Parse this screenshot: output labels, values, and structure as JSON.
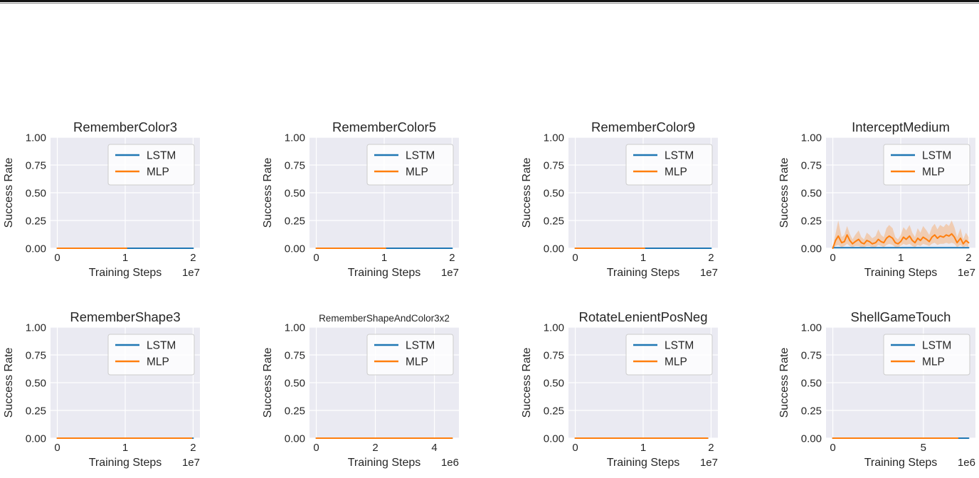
{
  "figure": {
    "shared": {
      "ylabel": "Success Rate",
      "xlabel": "Training Steps",
      "legend_labels": [
        "LSTM",
        "MLP"
      ]
    },
    "colors": {
      "lstm": "#1f77b4",
      "mlp": "#ff7f0e",
      "plot_bg": "#eaeaf2",
      "grid": "#ffffff",
      "text": "#262626",
      "legend_bg": "#ffffff",
      "legend_border": "#cccccc",
      "top_rule": "#141414"
    }
  },
  "chart_data": [
    {
      "type": "line",
      "title": "RememberColor3",
      "title_small": false,
      "xlabel": "Training Steps",
      "ylabel": "Success Rate",
      "x_offset_label": "1e7",
      "x_data_max": 2,
      "x_ticks": [
        0,
        1,
        2
      ],
      "x_tick_labels": [
        "0",
        "1",
        "2"
      ],
      "y_ticks": [
        0,
        0.25,
        0.5,
        0.75,
        1
      ],
      "y_tick_labels": [
        "0.00",
        "0.25",
        "0.50",
        "0.75",
        "1.00"
      ],
      "ylim": [
        0,
        1
      ],
      "legend": [
        "LSTM",
        "MLP"
      ],
      "series": [
        {
          "name": "LSTM",
          "color": "#1f77b4",
          "x": [
            0,
            2
          ],
          "y": [
            0,
            0
          ]
        },
        {
          "name": "MLP",
          "color": "#ff7f0e",
          "x": [
            0,
            1.02
          ],
          "y": [
            0,
            0
          ]
        }
      ]
    },
    {
      "type": "line",
      "title": "RememberColor5",
      "title_small": false,
      "xlabel": "Training Steps",
      "ylabel": "Success Rate",
      "x_offset_label": "1e7",
      "x_data_max": 2,
      "x_ticks": [
        0,
        1,
        2
      ],
      "x_tick_labels": [
        "0",
        "1",
        "2"
      ],
      "y_ticks": [
        0,
        0.25,
        0.5,
        0.75,
        1
      ],
      "y_tick_labels": [
        "0.00",
        "0.25",
        "0.50",
        "0.75",
        "1.00"
      ],
      "ylim": [
        0,
        1
      ],
      "legend": [
        "LSTM",
        "MLP"
      ],
      "series": [
        {
          "name": "LSTM",
          "color": "#1f77b4",
          "x": [
            0,
            2
          ],
          "y": [
            0,
            0
          ]
        },
        {
          "name": "MLP",
          "color": "#ff7f0e",
          "x": [
            0,
            1.02
          ],
          "y": [
            0,
            0
          ]
        }
      ]
    },
    {
      "type": "line",
      "title": "RememberColor9",
      "title_small": false,
      "xlabel": "Training Steps",
      "ylabel": "Success Rate",
      "x_offset_label": "1e7",
      "x_data_max": 2,
      "x_ticks": [
        0,
        1,
        2
      ],
      "x_tick_labels": [
        "0",
        "1",
        "2"
      ],
      "y_ticks": [
        0,
        0.25,
        0.5,
        0.75,
        1
      ],
      "y_tick_labels": [
        "0.00",
        "0.25",
        "0.50",
        "0.75",
        "1.00"
      ],
      "ylim": [
        0,
        1
      ],
      "legend": [
        "LSTM",
        "MLP"
      ],
      "series": [
        {
          "name": "LSTM",
          "color": "#1f77b4",
          "x": [
            0,
            2
          ],
          "y": [
            0,
            0
          ]
        },
        {
          "name": "MLP",
          "color": "#ff7f0e",
          "x": [
            0,
            1.02
          ],
          "y": [
            0,
            0
          ]
        }
      ]
    },
    {
      "type": "line",
      "title": "InterceptMedium",
      "title_small": false,
      "xlabel": "Training Steps",
      "ylabel": "Success Rate",
      "x_offset_label": "1e7",
      "x_data_max": 2,
      "x_ticks": [
        0,
        1,
        2
      ],
      "x_tick_labels": [
        "0",
        "1",
        "2"
      ],
      "y_ticks": [
        0,
        0.25,
        0.5,
        0.75,
        1
      ],
      "y_tick_labels": [
        "0.00",
        "0.25",
        "0.50",
        "0.75",
        "1.00"
      ],
      "ylim": [
        0,
        1
      ],
      "legend": [
        "LSTM",
        "MLP"
      ],
      "series": [
        {
          "name": "LSTM",
          "color": "#1f77b4",
          "x": [
            0,
            2
          ],
          "y": [
            0.005,
            0.005
          ]
        },
        {
          "name": "MLP",
          "color": "#ff7f0e",
          "x": [
            0,
            0.04,
            0.08,
            0.13,
            0.17,
            0.21,
            0.25,
            0.29,
            0.33,
            0.38,
            0.42,
            0.46,
            0.5,
            0.54,
            0.58,
            0.63,
            0.67,
            0.71,
            0.75,
            0.79,
            0.83,
            0.88,
            0.92,
            0.96,
            1.0,
            1.04,
            1.08,
            1.13,
            1.17,
            1.21,
            1.25,
            1.29,
            1.33,
            1.38,
            1.42,
            1.46,
            1.5,
            1.54,
            1.58,
            1.63,
            1.67,
            1.71,
            1.75,
            1.79,
            1.83,
            1.88,
            1.92,
            1.96,
            2.0
          ],
          "y": [
            0,
            0.07,
            0.11,
            0.05,
            0.06,
            0.12,
            0.07,
            0.04,
            0.06,
            0.08,
            0.05,
            0.04,
            0.07,
            0.06,
            0.04,
            0.05,
            0.08,
            0.06,
            0.05,
            0.09,
            0.11,
            0.09,
            0.05,
            0.04,
            0.06,
            0.1,
            0.08,
            0.11,
            0.07,
            0.05,
            0.09,
            0.07,
            0.1,
            0.08,
            0.06,
            0.1,
            0.12,
            0.09,
            0.11,
            0.1,
            0.12,
            0.11,
            0.13,
            0.1,
            0.05,
            0.09,
            0.04,
            0.07,
            0.05
          ],
          "band": {
            "hi": [
              0.01,
              0.13,
              0.25,
              0.1,
              0.12,
              0.2,
              0.13,
              0.08,
              0.12,
              0.16,
              0.1,
              0.08,
              0.14,
              0.12,
              0.09,
              0.11,
              0.17,
              0.12,
              0.1,
              0.18,
              0.21,
              0.18,
              0.1,
              0.08,
              0.12,
              0.19,
              0.16,
              0.21,
              0.14,
              0.1,
              0.18,
              0.14,
              0.2,
              0.16,
              0.12,
              0.19,
              0.22,
              0.17,
              0.21,
              0.19,
              0.22,
              0.2,
              0.25,
              0.19,
              0.1,
              0.18,
              0.08,
              0.14,
              0.1
            ],
            "lo": [
              0,
              0.02,
              0.03,
              0.01,
              0.02,
              0.04,
              0.02,
              0.01,
              0.02,
              0.02,
              0.01,
              0.01,
              0.02,
              0.02,
              0.01,
              0.01,
              0.03,
              0.02,
              0.01,
              0.03,
              0.04,
              0.03,
              0.01,
              0.01,
              0.02,
              0.04,
              0.03,
              0.04,
              0.02,
              0.01,
              0.03,
              0.02,
              0.04,
              0.03,
              0.02,
              0.04,
              0.05,
              0.03,
              0.04,
              0.04,
              0.05,
              0.04,
              0.05,
              0.04,
              0.01,
              0.03,
              0.01,
              0.02,
              0.01
            ]
          }
        }
      ]
    },
    {
      "type": "line",
      "title": "RememberShape3",
      "title_small": false,
      "xlabel": "Training Steps",
      "ylabel": "Success Rate",
      "x_offset_label": "1e7",
      "x_data_max": 2,
      "x_ticks": [
        0,
        1,
        2
      ],
      "x_tick_labels": [
        "0",
        "1",
        "2"
      ],
      "y_ticks": [
        0,
        0.25,
        0.5,
        0.75,
        1
      ],
      "y_tick_labels": [
        "0.00",
        "0.25",
        "0.50",
        "0.75",
        "1.00"
      ],
      "ylim": [
        0,
        1
      ],
      "legend": [
        "LSTM",
        "MLP"
      ],
      "series": [
        {
          "name": "LSTM",
          "color": "#1f77b4",
          "x": [
            0,
            2
          ],
          "y": [
            0,
            0
          ]
        },
        {
          "name": "MLP",
          "color": "#ff7f0e",
          "x": [
            0,
            1.98
          ],
          "y": [
            0,
            0
          ]
        }
      ]
    },
    {
      "type": "line",
      "title": "RememberShapeAndColor3x2",
      "title_small": true,
      "xlabel": "Training Steps",
      "ylabel": "Success Rate",
      "x_offset_label": "1e6",
      "x_data_max": 4.6,
      "x_ticks": [
        0,
        2,
        4
      ],
      "x_tick_labels": [
        "0",
        "2",
        "4"
      ],
      "y_ticks": [
        0,
        0.25,
        0.5,
        0.75,
        1
      ],
      "y_tick_labels": [
        "0.00",
        "0.25",
        "0.50",
        "0.75",
        "1.00"
      ],
      "ylim": [
        0,
        1
      ],
      "legend": [
        "LSTM",
        "MLP"
      ],
      "series": [
        {
          "name": "LSTM",
          "color": "#1f77b4",
          "x": [
            0,
            4.6
          ],
          "y": [
            0,
            0
          ]
        },
        {
          "name": "MLP",
          "color": "#ff7f0e",
          "x": [
            0,
            4.6
          ],
          "y": [
            0,
            0
          ]
        }
      ]
    },
    {
      "type": "line",
      "title": "RotateLenientPosNeg",
      "title_small": false,
      "xlabel": "Training Steps",
      "ylabel": "Success Rate",
      "x_offset_label": "1e7",
      "x_data_max": 2,
      "x_ticks": [
        0,
        1,
        2
      ],
      "x_tick_labels": [
        "0",
        "1",
        "2"
      ],
      "y_ticks": [
        0,
        0.25,
        0.5,
        0.75,
        1
      ],
      "y_tick_labels": [
        "0.00",
        "0.25",
        "0.50",
        "0.75",
        "1.00"
      ],
      "ylim": [
        0,
        1
      ],
      "legend": [
        "LSTM",
        "MLP"
      ],
      "series": [
        {
          "name": "LSTM",
          "color": "#1f77b4",
          "x": [
            0,
            1.95
          ],
          "y": [
            0,
            0
          ]
        },
        {
          "name": "MLP",
          "color": "#ff7f0e",
          "x": [
            0,
            1.95
          ],
          "y": [
            0,
            0
          ]
        }
      ]
    },
    {
      "type": "line",
      "title": "ShellGameTouch",
      "title_small": false,
      "xlabel": "Training Steps",
      "ylabel": "Success Rate",
      "x_offset_label": "1e6",
      "x_data_max": 7.5,
      "x_ticks": [
        0,
        5
      ],
      "x_tick_labels": [
        "0",
        "5"
      ],
      "y_ticks": [
        0,
        0.25,
        0.5,
        0.75,
        1
      ],
      "y_tick_labels": [
        "0.00",
        "0.25",
        "0.50",
        "0.75",
        "1.00"
      ],
      "ylim": [
        0,
        1
      ],
      "legend": [
        "LSTM",
        "MLP"
      ],
      "series": [
        {
          "name": "LSTM",
          "color": "#1f77b4",
          "x": [
            0,
            7.5
          ],
          "y": [
            0,
            0
          ]
        },
        {
          "name": "MLP",
          "color": "#ff7f0e",
          "x": [
            0,
            6.9
          ],
          "y": [
            0,
            0
          ]
        }
      ]
    }
  ]
}
